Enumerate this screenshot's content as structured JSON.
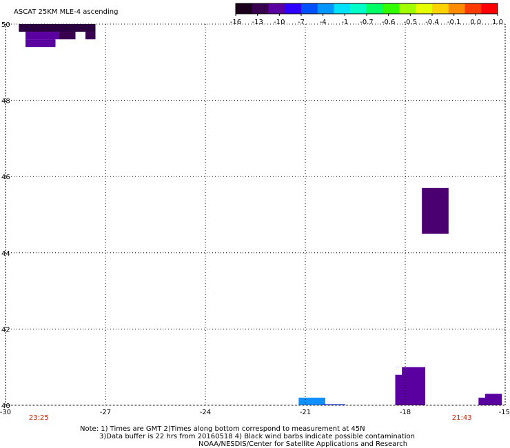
{
  "title": "ASCAT 25KM MLE-4 ascending",
  "colorbar": {
    "colors": [
      "#1a001a",
      "#3a0050",
      "#5a00a0",
      "#2d00ff",
      "#0050ff",
      "#0096ff",
      "#00e0ff",
      "#00ffc8",
      "#00ff64",
      "#32ff00",
      "#a0ff00",
      "#e6ff00",
      "#ffd200",
      "#ff8c00",
      "#ff3c00",
      "#ff0000"
    ],
    "tick_labels": [
      "-16",
      "-13",
      "-10",
      "-7",
      "-4",
      "-1",
      "-0.7",
      "-0.6",
      "-0.5",
      "-0.4",
      "-0.1",
      "0.0",
      "1.0"
    ]
  },
  "map": {
    "lon_range": [
      -30,
      -15
    ],
    "lat_range": [
      40,
      50
    ],
    "lon_ticks": [
      -30,
      -27,
      -24,
      -21,
      -18,
      -15
    ],
    "lon_labels": [
      "-30",
      "-27",
      "-24",
      "-21",
      "-18",
      "-15"
    ],
    "lat_ticks": [
      40,
      42,
      44,
      46,
      48,
      50
    ],
    "lat_labels": [
      "40",
      "42",
      "44",
      "46",
      "48",
      "50"
    ],
    "grid": "dotted",
    "swath_cells": [
      {
        "lon": [
          -29.6,
          -27.3
        ],
        "lat": [
          49.8,
          50.0
        ],
        "color": "#2a0040"
      },
      {
        "lon": [
          -29.4,
          -28.4
        ],
        "lat": [
          49.6,
          49.8
        ],
        "color": "#5a00a0"
      },
      {
        "lon": [
          -28.4,
          -27.9
        ],
        "lat": [
          49.6,
          49.8
        ],
        "color": "#3a0050"
      },
      {
        "lon": [
          -27.6,
          -27.3
        ],
        "lat": [
          49.6,
          49.8
        ],
        "color": "#3a0050"
      },
      {
        "lon": [
          -29.4,
          -28.5
        ],
        "lat": [
          49.4,
          49.6
        ],
        "color": "#5a00a0"
      },
      {
        "lon": [
          -17.5,
          -16.7
        ],
        "lat": [
          44.5,
          45.7
        ],
        "color": "#4a0070"
      },
      {
        "lon": [
          -18.3,
          -17.4
        ],
        "lat": [
          40.0,
          41.0
        ],
        "color": "#5a00a0"
      },
      {
        "lon": [
          -18.3,
          -18.1
        ],
        "lat": [
          40.8,
          41.0
        ],
        "color": "#ffffff"
      },
      {
        "lon": [
          -15.6,
          -15.1
        ],
        "lat": [
          40.0,
          40.3
        ],
        "color": "#5a00a0"
      },
      {
        "lon": [
          -15.8,
          -15.6
        ],
        "lat": [
          40.0,
          40.2
        ],
        "color": "#5a00a0"
      },
      {
        "lon": [
          -21.2,
          -20.4
        ],
        "lat": [
          40.0,
          40.2
        ],
        "color": "#1090ff"
      },
      {
        "lon": [
          -20.5,
          -19.8
        ],
        "lat": [
          40.0,
          40.03
        ],
        "color": "#2d50ff"
      }
    ]
  },
  "times": [
    {
      "lon": -29.0,
      "label": "23:25"
    },
    {
      "lon": -16.3,
      "label": "21:43"
    }
  ],
  "notes": {
    "line1": "Note: 1) Times are GMT 2)Times along bottom correspond to measurement at 45N",
    "line2": "3)Data buffer is 22 hrs from 20160518 4) Black wind barbs indicate possible contamination",
    "line3": "NOAA/NESDIS/Center for Satellite Applications and Research"
  }
}
